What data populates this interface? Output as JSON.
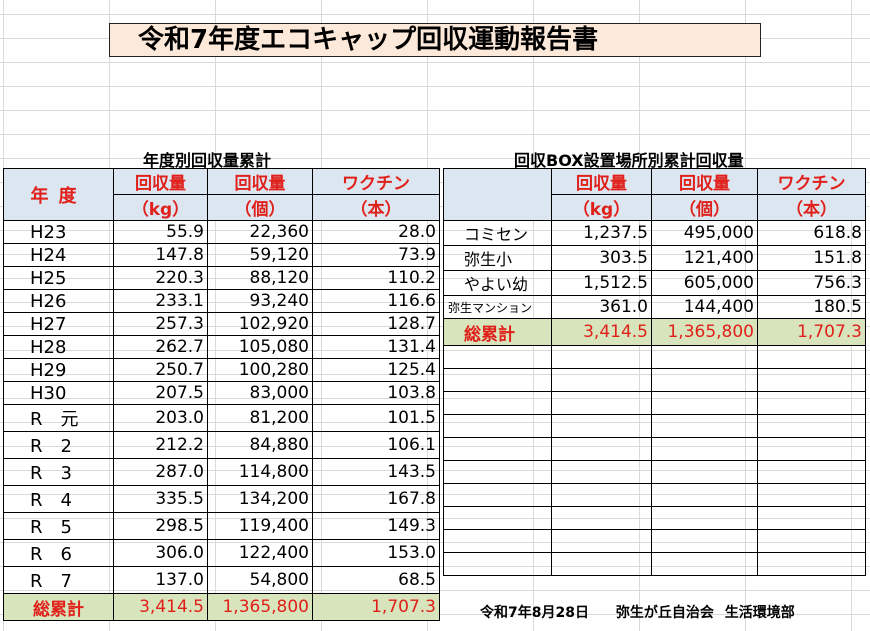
{
  "title": "令和7年度エコキャップ回収運動報告書",
  "left_table": {
    "section_title": "年度別回収量累計",
    "year_header": "年度",
    "columns": [
      {
        "label": "回収量",
        "unit": "（kg）"
      },
      {
        "label": "回収量",
        "unit": "（個）"
      },
      {
        "label": "ワクチン",
        "unit": "（本）"
      }
    ],
    "rows": [
      {
        "year": "H23",
        "kg": "55.9",
        "count": "22,360",
        "vaccine": "28.0"
      },
      {
        "year": "H24",
        "kg": "147.8",
        "count": "59,120",
        "vaccine": "73.9"
      },
      {
        "year": "H25",
        "kg": "220.3",
        "count": "88,120",
        "vaccine": "110.2"
      },
      {
        "year": "H26",
        "kg": "233.1",
        "count": "93,240",
        "vaccine": "116.6"
      },
      {
        "year": "H27",
        "kg": "257.3",
        "count": "102,920",
        "vaccine": "128.7"
      },
      {
        "year": "H28",
        "kg": "262.7",
        "count": "105,080",
        "vaccine": "131.4"
      },
      {
        "year": "H29",
        "kg": "250.7",
        "count": "100,280",
        "vaccine": "125.4"
      },
      {
        "year": "H30",
        "kg": "207.5",
        "count": "83,000",
        "vaccine": "103.8"
      },
      {
        "year": "R　元",
        "kg": "203.0",
        "count": "81,200",
        "vaccine": "101.5"
      },
      {
        "year": "R　2",
        "kg": "212.2",
        "count": "84,880",
        "vaccine": "106.1"
      },
      {
        "year": "R　3",
        "kg": "287.0",
        "count": "114,800",
        "vaccine": "143.5"
      },
      {
        "year": "R　4",
        "kg": "335.5",
        "count": "134,200",
        "vaccine": "167.8"
      },
      {
        "year": "R　5",
        "kg": "298.5",
        "count": "119,400",
        "vaccine": "149.3"
      },
      {
        "year": "R　6",
        "kg": "306.0",
        "count": "122,400",
        "vaccine": "153.0"
      },
      {
        "year": "R　7",
        "kg": "137.0",
        "count": "54,800",
        "vaccine": "68.5"
      }
    ],
    "total": {
      "label": "総累計",
      "kg": "3,414.5",
      "count": "1,365,800",
      "vaccine": "1,707.3"
    }
  },
  "right_table": {
    "section_title": "回収BOX設置場所別累計回収量",
    "columns": [
      {
        "label": "回収量",
        "unit": "（kg）"
      },
      {
        "label": "回収量",
        "unit": "（個）"
      },
      {
        "label": "ワクチン",
        "unit": "（本）"
      }
    ],
    "rows": [
      {
        "place": "コミセン",
        "kg": "1,237.5",
        "count": "495,000",
        "vaccine": "618.8"
      },
      {
        "place": "弥生小",
        "kg": "303.5",
        "count": "121,400",
        "vaccine": "151.8"
      },
      {
        "place": "やよい幼",
        "kg": "1,512.5",
        "count": "605,000",
        "vaccine": "756.3"
      },
      {
        "place": "弥生マンション",
        "kg": "361.0",
        "count": "144,400",
        "vaccine": "180.5"
      }
    ],
    "total": {
      "label": "総累計",
      "kg": "3,414.5",
      "count": "1,365,800",
      "vaccine": "1,707.3"
    }
  },
  "footer": {
    "date": "令和7年8月28日",
    "org": "弥生が丘自治会",
    "dept": "生活環境部"
  },
  "colors": {
    "header_bg": "#dce6f1",
    "total_bg": "#d8e4bc",
    "accent_red": "#e0201a",
    "title_bg": "#fde9d9"
  }
}
